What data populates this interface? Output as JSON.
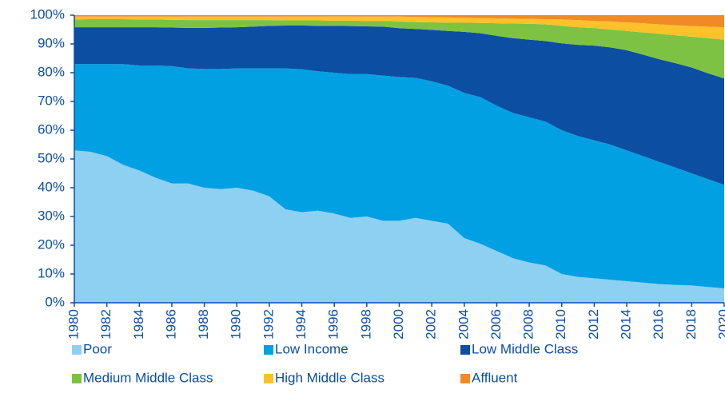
{
  "chart_data": {
    "type": "stacked-area",
    "x": [
      1980,
      1981,
      1982,
      1983,
      1984,
      1985,
      1986,
      1987,
      1988,
      1989,
      1990,
      1991,
      1992,
      1993,
      1994,
      1995,
      1996,
      1997,
      1998,
      1999,
      2000,
      2001,
      2002,
      2003,
      2004,
      2005,
      2006,
      2007,
      2008,
      2009,
      2010,
      2011,
      2012,
      2013,
      2014,
      2015,
      2016,
      2017,
      2018,
      2019,
      2020
    ],
    "xlim": [
      1980,
      2020
    ],
    "xticks": [
      1980,
      1982,
      1984,
      1986,
      1988,
      1990,
      1992,
      1994,
      1996,
      1998,
      2000,
      2002,
      2004,
      2006,
      2008,
      2010,
      2012,
      2014,
      2016,
      2018,
      2020
    ],
    "ylim": [
      0,
      100
    ],
    "yticks": [
      {
        "value": 0,
        "label": "0%"
      },
      {
        "value": 10,
        "label": "10%"
      },
      {
        "value": 20,
        "label": "20%"
      },
      {
        "value": 30,
        "label": "30%"
      },
      {
        "value": 40,
        "label": "40%"
      },
      {
        "value": 50,
        "label": "50%"
      },
      {
        "value": 60,
        "label": "60%"
      },
      {
        "value": 70,
        "label": "70%"
      },
      {
        "value": 80,
        "label": "80%"
      },
      {
        "value": 90,
        "label": "90%"
      },
      {
        "value": 100,
        "label": "100%"
      }
    ],
    "series": [
      {
        "name": "Poor",
        "color": "#8dd0f2",
        "values": [
          53,
          52.5,
          51,
          48,
          46,
          43.5,
          41.5,
          41.5,
          40,
          39.5,
          40,
          39,
          37,
          32.5,
          31.5,
          32,
          31,
          29.5,
          30,
          28.5,
          28.5,
          29.5,
          28.5,
          27.5,
          22.5,
          20.5,
          18,
          15.5,
          14,
          13,
          10,
          9,
          8.5,
          8,
          7.5,
          7,
          6.5,
          6.2,
          6,
          5.5,
          5
        ]
      },
      {
        "name": "Low Income",
        "color": "#00a0e3",
        "values": [
          30,
          30.5,
          32,
          35,
          36.5,
          39,
          40.8,
          40,
          41.3,
          41.8,
          41.5,
          42.5,
          44.5,
          49,
          49.7,
          48.5,
          49,
          50,
          49.5,
          50.5,
          50,
          48.7,
          48.5,
          48,
          50.5,
          51,
          50.5,
          50.5,
          50.5,
          50,
          50,
          49,
          48,
          47,
          45.5,
          44,
          42.5,
          40.8,
          39,
          37.5,
          36
        ]
      },
      {
        "name": "Low Middle Class",
        "color": "#0c4ea2",
        "values": [
          12.8,
          12.8,
          12.8,
          12.8,
          13.3,
          13.3,
          13.4,
          14.1,
          14.3,
          14.4,
          14.3,
          14.5,
          14.8,
          14.9,
          15.2,
          15.8,
          16.3,
          16.7,
          16.6,
          17,
          17,
          17,
          17.9,
          19,
          21.2,
          22.2,
          24.3,
          26,
          27,
          28,
          30.2,
          31.7,
          32.9,
          33.8,
          34.8,
          35.3,
          35.7,
          36.3,
          36.8,
          36.8,
          37
        ]
      },
      {
        "name": "Medium Middle Class",
        "color": "#7dc242",
        "values": [
          2.7,
          2.8,
          2.8,
          2.8,
          2.7,
          2.7,
          2.7,
          2.7,
          2.7,
          2.6,
          2.5,
          2.3,
          2,
          1.8,
          1.8,
          1.9,
          1.8,
          1.9,
          1.9,
          2,
          2.3,
          2.4,
          2.6,
          2.9,
          3.2,
          3.6,
          4.4,
          5.1,
          5.5,
          5.8,
          6.1,
          6.1,
          6.1,
          6.2,
          6.7,
          7.7,
          8.8,
          9.7,
          10.7,
          12.2,
          13.5
        ]
      },
      {
        "name": "High Middle Class",
        "color": "#fdc12b",
        "values": [
          1,
          0.9,
          0.9,
          0.9,
          1,
          1,
          1.1,
          1.2,
          1.2,
          1.2,
          1.2,
          1.2,
          1.2,
          1.3,
          1.3,
          1.3,
          1.4,
          1.4,
          1.5,
          1.5,
          1.7,
          1.8,
          1.8,
          1.8,
          1.7,
          1.7,
          1.7,
          1.7,
          1.7,
          1.8,
          2.2,
          2.5,
          2.5,
          2.8,
          3,
          3.2,
          3.3,
          3.5,
          3.7,
          4,
          4.3
        ]
      },
      {
        "name": "Affluent",
        "color": "#f08a24",
        "values": [
          0.5,
          0.5,
          0.5,
          0.5,
          0.5,
          0.5,
          0.5,
          0.5,
          0.5,
          0.5,
          0.5,
          0.5,
          0.5,
          0.5,
          0.5,
          0.5,
          0.5,
          0.5,
          0.5,
          0.5,
          0.5,
          0.6,
          0.7,
          0.8,
          0.9,
          1,
          1.1,
          1.2,
          1.3,
          1.4,
          1.5,
          1.7,
          2,
          2.2,
          2.5,
          2.8,
          3.2,
          3.5,
          3.8,
          4,
          4.2
        ]
      }
    ]
  }
}
